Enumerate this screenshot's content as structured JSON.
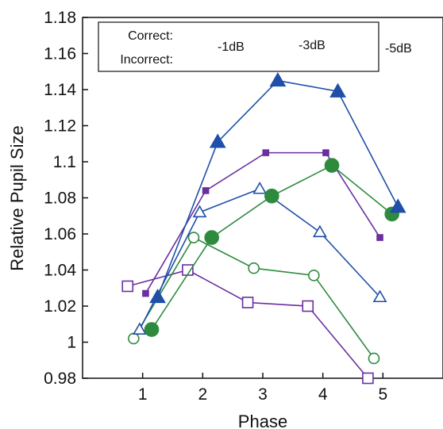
{
  "chart_data": {
    "type": "line",
    "xlabel": "Phase",
    "ylabel": "Relative Pupil Size",
    "xlim": [
      0,
      6
    ],
    "ylim": [
      0.98,
      1.18
    ],
    "xticks": [
      "1",
      "2",
      "3",
      "4",
      "5"
    ],
    "yticks": [
      "0.98",
      "1",
      "1.02",
      "1.04",
      "1.06",
      "1.08",
      "1.1",
      "1.12",
      "1.14",
      "1.16",
      "1.18"
    ],
    "legend": {
      "placement": "top",
      "row_labels": [
        "Correct:",
        "Incorrect:"
      ],
      "condition_labels": [
        "-1dB",
        "-3dB",
        "-5dB"
      ]
    },
    "series": [
      {
        "name": "Correct -1dB",
        "outcome": "correct",
        "condition": "-1dB",
        "color": "#6b2fa0",
        "marker": "small-square",
        "filled": true,
        "x": [
          1.05,
          2.05,
          3.05,
          4.05,
          4.95
        ],
        "y": [
          1.027,
          1.084,
          1.105,
          1.105,
          1.058
        ]
      },
      {
        "name": "Correct -3dB",
        "outcome": "correct",
        "condition": "-3dB",
        "color": "#2e8b3e",
        "marker": "circle",
        "filled": true,
        "x": [
          1.15,
          2.15,
          3.15,
          4.15,
          5.15
        ],
        "y": [
          1.007,
          1.058,
          1.081,
          1.098,
          1.071
        ]
      },
      {
        "name": "Correct -5dB",
        "outcome": "correct",
        "condition": "-5dB",
        "color": "#1f4fa8",
        "marker": "triangle",
        "filled": true,
        "x": [
          1.25,
          2.25,
          3.25,
          4.25,
          5.25
        ],
        "y": [
          1.025,
          1.111,
          1.145,
          1.139,
          1.075
        ]
      },
      {
        "name": "Incorrect -1dB",
        "outcome": "incorrect",
        "condition": "-1dB",
        "color": "#6b2fa0",
        "marker": "square",
        "filled": false,
        "x": [
          0.75,
          1.75,
          2.75,
          3.75,
          4.75
        ],
        "y": [
          1.031,
          1.04,
          1.022,
          1.02,
          0.98
        ]
      },
      {
        "name": "Incorrect -3dB",
        "outcome": "incorrect",
        "condition": "-3dB",
        "color": "#2e8b3e",
        "marker": "circle",
        "filled": false,
        "x": [
          0.85,
          1.85,
          2.85,
          3.85,
          4.85
        ],
        "y": [
          1.002,
          1.058,
          1.041,
          1.037,
          0.991
        ]
      },
      {
        "name": "Incorrect -5dB",
        "outcome": "incorrect",
        "condition": "-5dB",
        "color": "#1f4fa8",
        "marker": "triangle",
        "filled": false,
        "x": [
          0.95,
          1.95,
          2.95,
          3.95,
          4.95
        ],
        "y": [
          1.007,
          1.072,
          1.085,
          1.061,
          1.025
        ]
      }
    ]
  }
}
